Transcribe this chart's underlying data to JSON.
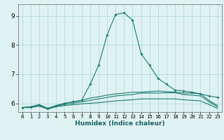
{
  "xlabel": "Humidex (Indice chaleur)",
  "background_color": "#dff2f2",
  "grid_color": "#aad8d8",
  "line_color": "#1a7a6e",
  "xlim": [
    -0.5,
    23.5
  ],
  "ylim": [
    5.7,
    9.4
  ],
  "yticks": [
    6,
    7,
    8,
    9
  ],
  "xticks": [
    0,
    1,
    2,
    3,
    4,
    5,
    6,
    7,
    8,
    9,
    10,
    11,
    12,
    13,
    14,
    15,
    16,
    17,
    18,
    19,
    20,
    21,
    22,
    23
  ],
  "series": [
    {
      "x": [
        0,
        1,
        2,
        3,
        4,
        5,
        6,
        7,
        8,
        9,
        10,
        11,
        12,
        13,
        14,
        15,
        16,
        17,
        18,
        19,
        20,
        21,
        22,
        23
      ],
      "y": [
        5.85,
        5.88,
        5.95,
        5.82,
        5.92,
        6.0,
        6.05,
        6.1,
        6.65,
        7.3,
        8.35,
        9.05,
        9.1,
        8.85,
        7.7,
        7.3,
        6.85,
        6.65,
        6.45,
        6.42,
        6.38,
        6.32,
        6.25,
        6.2
      ],
      "marker": true
    },
    {
      "x": [
        0,
        1,
        2,
        3,
        4,
        5,
        6,
        7,
        8,
        9,
        10,
        11,
        12,
        13,
        14,
        15,
        16,
        17,
        18,
        19,
        20,
        21,
        22,
        23
      ],
      "y": [
        5.85,
        5.88,
        5.95,
        5.83,
        5.92,
        6.0,
        6.05,
        6.1,
        6.18,
        6.22,
        6.28,
        6.32,
        6.35,
        6.38,
        6.38,
        6.4,
        6.42,
        6.4,
        6.38,
        6.35,
        6.35,
        6.32,
        6.1,
        5.92
      ],
      "marker": false
    },
    {
      "x": [
        0,
        1,
        2,
        3,
        4,
        5,
        6,
        7,
        8,
        9,
        10,
        11,
        12,
        13,
        14,
        15,
        16,
        17,
        18,
        19,
        20,
        21,
        22,
        23
      ],
      "y": [
        5.85,
        5.88,
        5.93,
        5.82,
        5.9,
        5.96,
        6.0,
        6.05,
        6.1,
        6.15,
        6.2,
        6.25,
        6.28,
        6.3,
        6.35,
        6.35,
        6.35,
        6.36,
        6.36,
        6.3,
        6.28,
        6.25,
        6.05,
        5.88
      ],
      "marker": false
    },
    {
      "x": [
        0,
        1,
        2,
        3,
        4,
        5,
        6,
        7,
        8,
        9,
        10,
        11,
        12,
        13,
        14,
        15,
        16,
        17,
        18,
        19,
        20,
        21,
        22,
        23
      ],
      "y": [
        5.85,
        5.85,
        5.9,
        5.8,
        5.88,
        5.92,
        5.95,
        5.98,
        6.0,
        6.02,
        6.05,
        6.08,
        6.1,
        6.12,
        6.15,
        6.15,
        6.15,
        6.15,
        6.15,
        6.12,
        6.1,
        6.08,
        5.96,
        5.82
      ],
      "marker": false
    }
  ]
}
